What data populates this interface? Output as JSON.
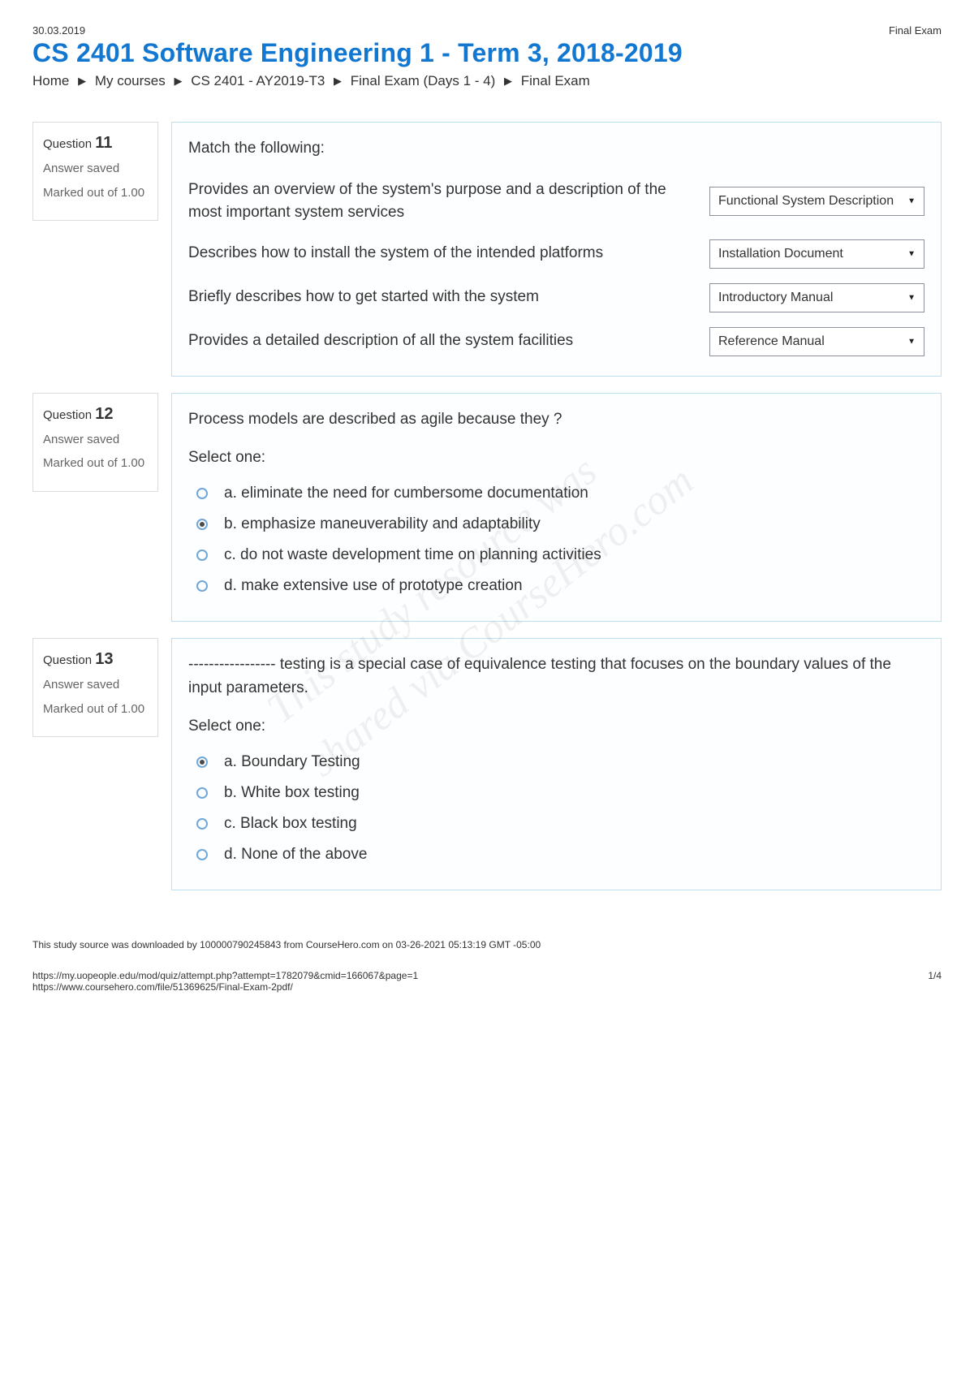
{
  "header": {
    "date": "30.03.2019",
    "doc_label": "Final Exam",
    "title": "CS 2401 Software Engineering 1 - Term 3, 2018-2019",
    "breadcrumb": [
      "Home",
      "My courses",
      "CS 2401 - AY2019-T3",
      "Final Exam (Days 1 - 4)",
      "Final Exam"
    ]
  },
  "colors": {
    "link": "#1177d1",
    "box_border": "#bde0f1",
    "info_border": "#dcdcdc",
    "radio_border": "#6fa8d8"
  },
  "questions": [
    {
      "number": "11",
      "status": "Answer saved",
      "mark": "Marked out of 1.00",
      "prompt": "Match the following:",
      "type": "match",
      "rows": [
        {
          "text": "Provides an overview of the system's purpose and a description of the most important system services",
          "selected": "Functional System Description"
        },
        {
          "text": "Describes how to install the system of the intended platforms",
          "selected": "Installation Document"
        },
        {
          "text": "Briefly describes how to get started with the system",
          "selected": "Introductory Manual"
        },
        {
          "text": "Provides a detailed description of all the system facilities",
          "selected": "Reference Manual"
        }
      ]
    },
    {
      "number": "12",
      "status": "Answer saved",
      "mark": "Marked out of 1.00",
      "prompt": "Process models are described as agile because they ?",
      "type": "radio",
      "select_label": "Select one:",
      "options": [
        {
          "label": "a. eliminate the need for cumbersome documentation",
          "checked": false
        },
        {
          "label": "b. emphasize maneuverability and adaptability",
          "checked": true
        },
        {
          "label": "c. do not waste development time on planning activities",
          "checked": false
        },
        {
          "label": "d. make extensive use of prototype creation",
          "checked": false
        }
      ]
    },
    {
      "number": "13",
      "status": "Answer saved",
      "mark": "Marked out of 1.00",
      "prompt": "----------------- testing is a special case of equivalence testing that focuses on the boundary values of the input parameters.",
      "type": "radio",
      "select_label": "Select one:",
      "options": [
        {
          "label": "a. Boundary Testing",
          "checked": true
        },
        {
          "label": "b. White box testing",
          "checked": false
        },
        {
          "label": "c. Black box testing",
          "checked": false
        },
        {
          "label": "d. None of the above",
          "checked": false
        }
      ]
    }
  ],
  "watermark": {
    "line1": "This study resource was",
    "line2": "shared via CourseHero.com"
  },
  "footer": {
    "note": "This study source was downloaded by 100000790245843 from CourseHero.com on 03-26-2021 05:13:19 GMT -05:00",
    "url1": "https://my.uopeople.edu/mod/quiz/attempt.php?attempt=1782079&cmid=166067&page=1",
    "url2": "https://www.coursehero.com/file/51369625/Final-Exam-2pdf/",
    "page": "1/4"
  }
}
